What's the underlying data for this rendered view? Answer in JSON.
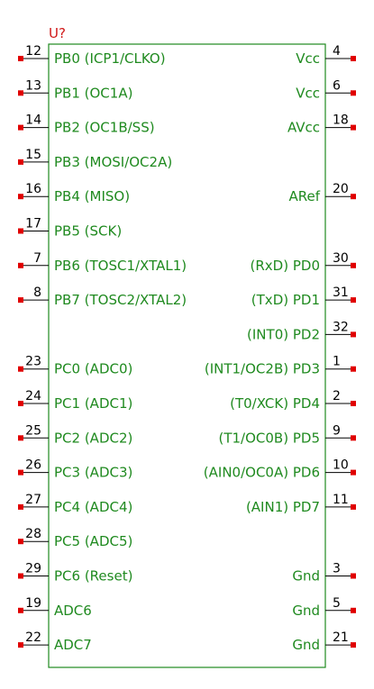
{
  "component": {
    "reference": "U?"
  },
  "left_pins": [
    {
      "number": "12",
      "label": "PB0 (ICP1/CLKO)"
    },
    {
      "number": "13",
      "label": "PB1 (OC1A)"
    },
    {
      "number": "14",
      "label": "PB2 (OC1B/SS)"
    },
    {
      "number": "15",
      "label": "PB3 (MOSI/OC2A)"
    },
    {
      "number": "16",
      "label": "PB4 (MISO)"
    },
    {
      "number": "17",
      "label": "PB5 (SCK)"
    },
    {
      "number": "7",
      "label": "PB6 (TOSC1/XTAL1)"
    },
    {
      "number": "8",
      "label": "PB7 (TOSC2/XTAL2)"
    },
    null,
    {
      "number": "23",
      "label": "PC0 (ADC0)"
    },
    {
      "number": "24",
      "label": "PC1 (ADC1)"
    },
    {
      "number": "25",
      "label": "PC2 (ADC2)"
    },
    {
      "number": "26",
      "label": "PC3 (ADC3)"
    },
    {
      "number": "27",
      "label": "PC4 (ADC4)"
    },
    {
      "number": "28",
      "label": "PC5 (ADC5)"
    },
    {
      "number": "29",
      "label": "PC6 (Reset)"
    },
    {
      "number": "19",
      "label": "ADC6"
    },
    {
      "number": "22",
      "label": "ADC7"
    }
  ],
  "right_pins": [
    {
      "number": "4",
      "label": "Vcc"
    },
    {
      "number": "6",
      "label": "Vcc"
    },
    {
      "number": "18",
      "label": "AVcc"
    },
    null,
    {
      "number": "20",
      "label": "ARef"
    },
    null,
    {
      "number": "30",
      "label": "(RxD) PD0"
    },
    {
      "number": "31",
      "label": "(TxD) PD1"
    },
    {
      "number": "32",
      "label": "(INT0) PD2"
    },
    {
      "number": "1",
      "label": "(INT1/OC2B) PD3"
    },
    {
      "number": "2",
      "label": "(T0/XCK) PD4"
    },
    {
      "number": "9",
      "label": "(T1/OC0B) PD5"
    },
    {
      "number": "10",
      "label": "(AIN0/OC0A) PD6"
    },
    {
      "number": "11",
      "label": "(AIN1) PD7"
    },
    null,
    {
      "number": "3",
      "label": "Gnd"
    },
    {
      "number": "5",
      "label": "Gnd"
    },
    {
      "number": "21",
      "label": "Gnd"
    }
  ],
  "colors": {
    "outline": "#1f8a1f",
    "pin_label": "#1f8a1f",
    "reference": "#d01818",
    "pin_endpoint": "#e00000",
    "pin_line": "#000000",
    "pin_number": "#000000"
  }
}
